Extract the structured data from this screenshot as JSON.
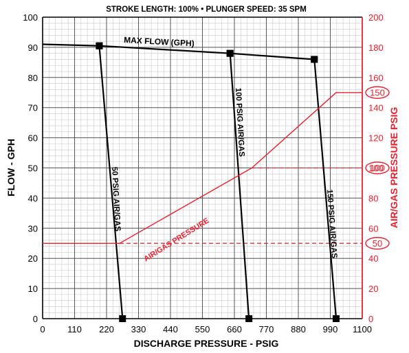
{
  "chart_data": {
    "type": "line",
    "title": "STROKE LENGTH: 100%  •  PLUNGER SPEED: 35 SPM",
    "xlabel": "DISCHARGE PRESSURE - PSIG",
    "ylabel": "FLOW - GPH",
    "y2label": "AIR/GAS PRESSURE PSIG",
    "xlim": [
      0,
      1100
    ],
    "ylim": [
      0,
      100
    ],
    "y2lim": [
      0,
      200
    ],
    "x_ticks": [
      0,
      110,
      220,
      330,
      440,
      550,
      660,
      770,
      880,
      990,
      1100
    ],
    "y_ticks": [
      0,
      10,
      20,
      30,
      40,
      50,
      60,
      70,
      80,
      90,
      100
    ],
    "y2_ticks": [
      0,
      20,
      40,
      60,
      80,
      100,
      120,
      140,
      160,
      180,
      200
    ],
    "grid": true,
    "colors": {
      "primary": "#000000",
      "secondary": "#e8202e",
      "grid": "#999999"
    },
    "series": [
      {
        "name": "MAX FLOW (GPH)",
        "axis": "left",
        "style": "line",
        "x": [
          0,
          195,
          645,
          935
        ],
        "y": [
          91,
          90.5,
          88,
          86
        ],
        "markers": [
          1,
          2,
          3
        ]
      },
      {
        "name": "50 PSIG AIR/GAS",
        "axis": "left",
        "style": "line",
        "x": [
          195,
          275
        ],
        "y": [
          90.5,
          0
        ],
        "markers": [
          0,
          1
        ]
      },
      {
        "name": "100 PSIG AIR/GAS",
        "axis": "left",
        "style": "line",
        "x": [
          645,
          710
        ],
        "y": [
          88,
          0
        ],
        "markers": [
          0,
          1
        ]
      },
      {
        "name": "150 PSIG AIR/GAS",
        "axis": "left",
        "style": "line",
        "x": [
          935,
          1010
        ],
        "y": [
          86,
          0
        ],
        "markers": [
          0,
          1
        ]
      },
      {
        "name": "AIR/GAS PRESSURE",
        "axis": "right",
        "style": "line",
        "x": [
          0,
          265,
          720,
          1010,
          1100
        ],
        "y": [
          50,
          50,
          100,
          150,
          150
        ]
      }
    ],
    "reference_lines": [
      {
        "axis": "right",
        "y": 50,
        "from_x": 265,
        "to_x": 1100,
        "label": "50"
      },
      {
        "axis": "right",
        "y": 100,
        "from_x": 720,
        "to_x": 1100,
        "label": "100"
      }
    ],
    "callouts": [
      {
        "axis": "right",
        "y": 150,
        "label": "150"
      },
      {
        "axis": "right",
        "y": 100,
        "label": "100"
      },
      {
        "axis": "right",
        "y": 50,
        "label": "50"
      }
    ]
  }
}
